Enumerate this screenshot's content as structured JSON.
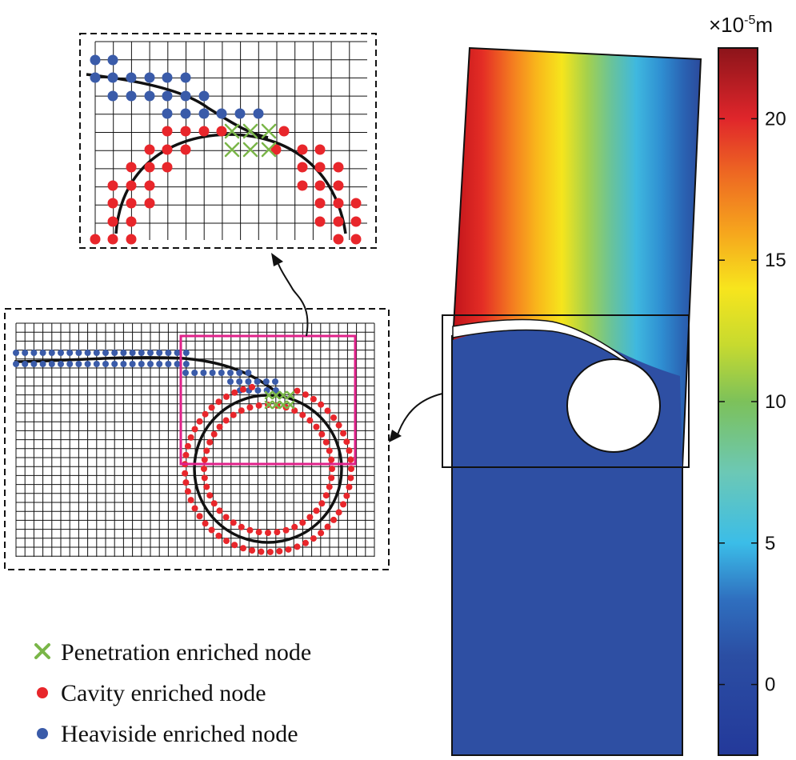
{
  "colorbar": {
    "unit_prefix": "×10",
    "unit_exponent": "-5",
    "unit_suffix": "m",
    "min": -2.5,
    "max": 22.5,
    "ticks": [
      {
        "value": 20,
        "label": "20"
      },
      {
        "value": 15,
        "label": "15"
      },
      {
        "value": 10,
        "label": "10"
      },
      {
        "value": 5,
        "label": "5"
      },
      {
        "value": 0,
        "label": "0"
      }
    ]
  },
  "legend": {
    "items": [
      {
        "label": "Penetration enriched node",
        "symbol": "cross",
        "color": "#7ab648"
      },
      {
        "label": "Cavity enriched node",
        "symbol": "dot",
        "color": "#e8262b"
      },
      {
        "label": "Heaviside enriched node",
        "symbol": "dot",
        "color": "#3a5ba9"
      }
    ]
  },
  "colors": {
    "mesh_line": "#111111",
    "zoom_frame": "#e0218a",
    "dashed_frame": "#111111",
    "specimen_base": "#2e4fa3"
  }
}
